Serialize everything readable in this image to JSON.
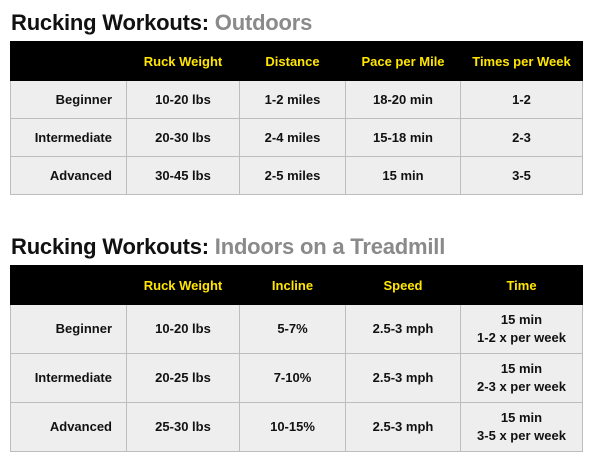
{
  "outdoors": {
    "title_bold": "Rucking Workouts:",
    "title_muted": "Outdoors",
    "headers": [
      "",
      "Ruck Weight",
      "Distance",
      "Pace per Mile",
      "Times per Week"
    ],
    "rows": [
      [
        "Beginner",
        "10-20 lbs",
        "1-2 miles",
        "18-20 min",
        "1-2"
      ],
      [
        "Intermediate",
        "20-30 lbs",
        "2-4 miles",
        "15-18 min",
        "2-3"
      ],
      [
        "Advanced",
        "30-45 lbs",
        "2-5 miles",
        "15 min",
        "3-5"
      ]
    ]
  },
  "treadmill": {
    "title_bold": "Rucking Workouts:",
    "title_muted": "Indoors on a Treadmill",
    "headers": [
      "",
      "Ruck Weight",
      "Incline",
      "Speed",
      "Time"
    ],
    "rows": [
      [
        "Beginner",
        "10-20 lbs",
        "5-7%",
        "2.5-3 mph",
        [
          "15 min",
          "1-2 x per week"
        ]
      ],
      [
        "Intermediate",
        "20-25 lbs",
        "7-10%",
        "2.5-3 mph",
        [
          "15 min",
          "2-3 x per week"
        ]
      ],
      [
        "Advanced",
        "25-30 lbs",
        "10-15%",
        "2.5-3 mph",
        [
          "15 min",
          "3-5 x per week"
        ]
      ]
    ]
  },
  "colors": {
    "header_bg": "#000000",
    "header_text": "#ffe600",
    "row_bg": "#eeeeee",
    "title_muted": "#8a8a8a"
  }
}
